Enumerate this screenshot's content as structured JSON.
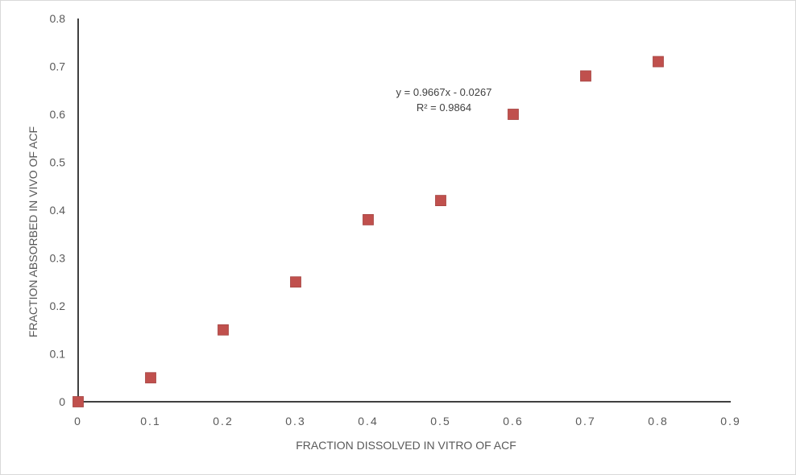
{
  "chart_data": {
    "type": "scatter",
    "title": "",
    "xlabel": "FRACTION DISSOLVED IN VITRO OF ACF",
    "ylabel": "FRACTION ABSORBED IN VIVO OF ACF",
    "xlim": [
      0,
      0.9
    ],
    "ylim": [
      0,
      0.8
    ],
    "x_ticks": [
      0,
      0.1,
      0.2,
      0.3,
      0.4,
      0.5,
      0.6,
      0.7,
      0.8,
      0.9
    ],
    "x_tick_labels": [
      "0",
      "0.1",
      "0.2",
      "0.3",
      "0.4",
      "0.5",
      "0.6",
      "0.7",
      "0.8",
      "0.9"
    ],
    "y_ticks": [
      0,
      0.1,
      0.2,
      0.3,
      0.4,
      0.5,
      0.6,
      0.7,
      0.8
    ],
    "y_tick_labels": [
      "0",
      "0.1",
      "0.2",
      "0.3",
      "0.4",
      "0.5",
      "0.6",
      "0.7",
      "0.8"
    ],
    "grid": false,
    "legend": "none",
    "series": [
      {
        "marker": "square",
        "color": "#C0504D",
        "points": [
          {
            "x": 0,
            "y": 0
          },
          {
            "x": 0.1,
            "y": 0.05
          },
          {
            "x": 0.2,
            "y": 0.15
          },
          {
            "x": 0.3,
            "y": 0.25
          },
          {
            "x": 0.4,
            "y": 0.38
          },
          {
            "x": 0.5,
            "y": 0.42
          },
          {
            "x": 0.6,
            "y": 0.6
          },
          {
            "x": 0.7,
            "y": 0.68
          },
          {
            "x": 0.8,
            "y": 0.71
          }
        ]
      }
    ],
    "annotations": {
      "equation": "y = 0.9667x - 0.0267",
      "r_squared": "R² = 0.9864"
    }
  }
}
